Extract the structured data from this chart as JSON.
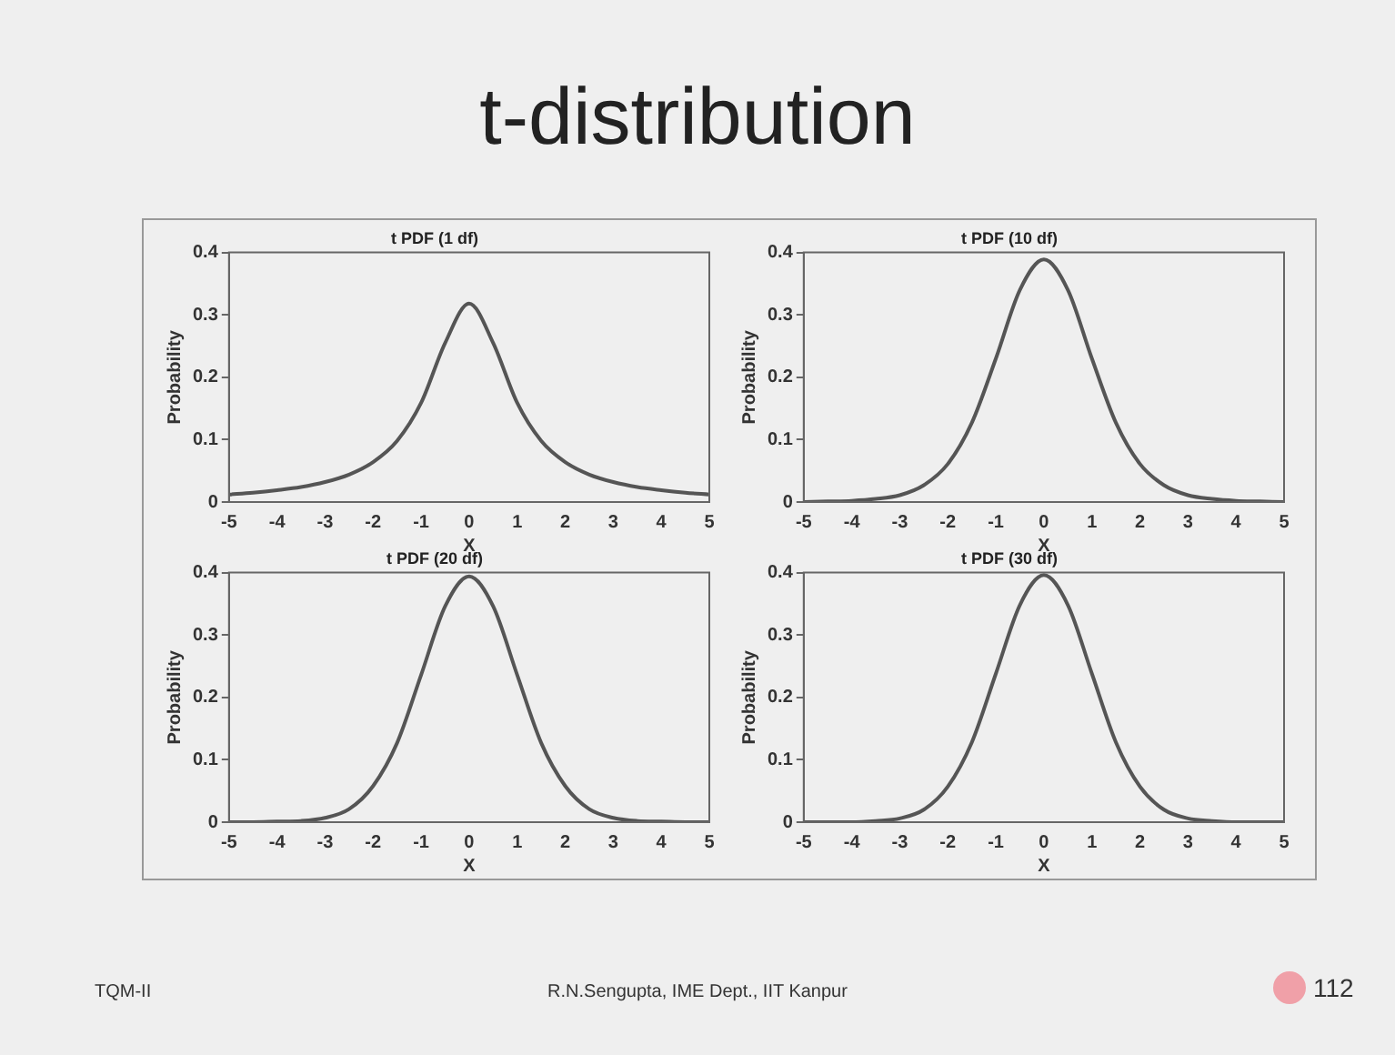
{
  "chart_data": [
    {
      "type": "line",
      "title": "t PDF (1 df)",
      "xlabel": "X",
      "ylabel": "Probability",
      "annotations": [
        "t-distribution"
      ],
      "x": [
        -5,
        -4.5,
        -4,
        -3.5,
        -3,
        -2.5,
        -2,
        -1.5,
        -1,
        -0.5,
        0,
        0.5,
        1,
        1.5,
        2,
        2.5,
        3,
        3.5,
        4,
        4.5,
        5
      ],
      "series": [
        {
          "color": "#555555",
          "values": [
            0.012,
            0.015,
            0.019,
            0.024,
            0.032,
            0.044,
            0.064,
            0.098,
            0.159,
            0.255,
            0.318,
            0.255,
            0.159,
            0.098,
            0.064,
            0.044,
            0.032,
            0.024,
            0.019,
            0.015,
            0.012
          ]
        }
      ],
      "xlim": [
        -5,
        5
      ],
      "xticks": [
        -5,
        -4,
        -3,
        -2,
        -1,
        0,
        1,
        2,
        3,
        4,
        5
      ],
      "ylim": [
        0,
        0.4
      ],
      "yticks": [
        0,
        0.1,
        0.2,
        0.3,
        0.4
      ],
      "grid": false,
      "legend": false,
      "marker": "none",
      "line_style": "solid"
    },
    {
      "type": "line",
      "title": "t PDF (10 df)",
      "xlabel": "X",
      "ylabel": "Probability",
      "x": [
        -5,
        -4.5,
        -4,
        -3.5,
        -3,
        -2.5,
        -2,
        -1.5,
        -1,
        -0.5,
        0,
        0.5,
        1,
        1.5,
        2,
        2.5,
        3,
        3.5,
        4,
        4.5,
        5
      ],
      "series": [
        {
          "color": "#555555",
          "values": [
            0,
            0.001,
            0.002,
            0.005,
            0.011,
            0.027,
            0.061,
            0.127,
            0.23,
            0.34,
            0.389,
            0.34,
            0.23,
            0.127,
            0.061,
            0.027,
            0.011,
            0.005,
            0.002,
            0.001,
            0
          ]
        }
      ],
      "xlim": [
        -5,
        5
      ],
      "xticks": [
        -5,
        -4,
        -3,
        -2,
        -1,
        0,
        1,
        2,
        3,
        4,
        5
      ],
      "ylim": [
        0,
        0.4
      ],
      "yticks": [
        0,
        0.1,
        0.2,
        0.3,
        0.4
      ],
      "grid": false,
      "legend": false,
      "marker": "none",
      "line_style": "solid"
    },
    {
      "type": "line",
      "title": "t PDF (20 df)",
      "xlabel": "X",
      "ylabel": "Probability",
      "x": [
        -5,
        -4.5,
        -4,
        -3.5,
        -3,
        -2.5,
        -2,
        -1.5,
        -1,
        -0.5,
        0,
        0.5,
        1,
        1.5,
        2,
        2.5,
        3,
        3.5,
        4,
        4.5,
        5
      ],
      "series": [
        {
          "color": "#555555",
          "values": [
            0,
            0,
            0.001,
            0.002,
            0.007,
            0.021,
            0.058,
            0.127,
            0.236,
            0.346,
            0.394,
            0.346,
            0.236,
            0.127,
            0.058,
            0.021,
            0.007,
            0.002,
            0.001,
            0,
            0
          ]
        }
      ],
      "xlim": [
        -5,
        5
      ],
      "xticks": [
        -5,
        -4,
        -3,
        -2,
        -1,
        0,
        1,
        2,
        3,
        4,
        5
      ],
      "ylim": [
        0,
        0.4
      ],
      "yticks": [
        0,
        0.1,
        0.2,
        0.3,
        0.4
      ],
      "grid": false,
      "legend": false,
      "marker": "none",
      "line_style": "solid"
    },
    {
      "type": "line",
      "title": "t PDF (30 df)",
      "xlabel": "X",
      "ylabel": "Probability",
      "annotations": [
        "TQM-II",
        "R.N.Sengupta, IME Dept., IIT Kanpur",
        "112"
      ],
      "x": [
        -5,
        -4.5,
        -4,
        -3.5,
        -3,
        -2.5,
        -2,
        -1.5,
        -1,
        -0.5,
        0,
        0.5,
        1,
        1.5,
        2,
        2.5,
        3,
        3.5,
        4,
        4.5,
        5
      ],
      "series": [
        {
          "color": "#555555",
          "values": [
            0,
            0,
            0,
            0.002,
            0.006,
            0.02,
            0.057,
            0.128,
            0.238,
            0.348,
            0.396,
            0.348,
            0.238,
            0.128,
            0.057,
            0.02,
            0.006,
            0.002,
            0,
            0,
            0
          ]
        }
      ],
      "xlim": [
        -5,
        5
      ],
      "xticks": [
        -5,
        -4,
        -3,
        -2,
        -1,
        0,
        1,
        2,
        3,
        4,
        5
      ],
      "ylim": [
        0,
        0.4
      ],
      "yticks": [
        0,
        0.1,
        0.2,
        0.3,
        0.4
      ],
      "grid": false,
      "legend": false,
      "marker": "none",
      "line_style": "solid"
    }
  ]
}
